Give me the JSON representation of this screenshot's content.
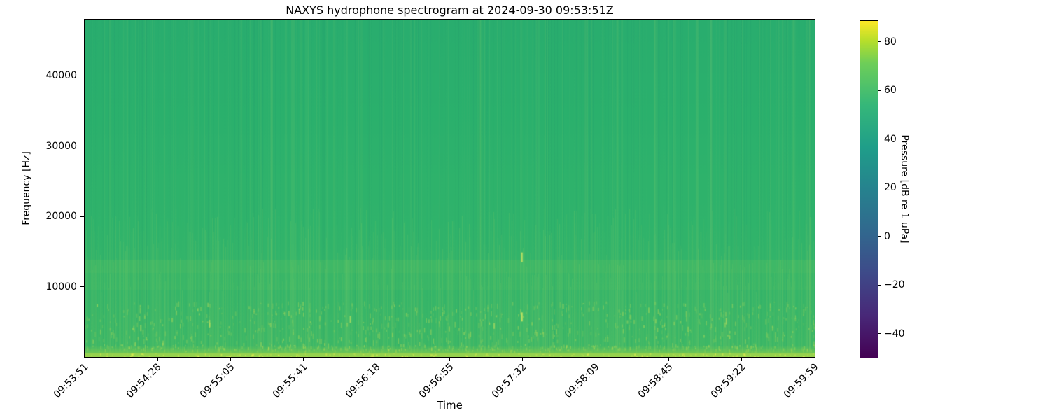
{
  "figure": {
    "title": "NAXYS hydrophone spectrogram at 2024-09-30 09:53:51Z",
    "background_color": "#ffffff"
  },
  "chart_data": {
    "type": "heatmap",
    "subtype": "spectrogram",
    "title": "NAXYS hydrophone spectrogram at 2024-09-30 09:53:51Z",
    "xlabel": "Time",
    "ylabel": "Frequency [Hz]",
    "x_tick_labels": [
      "09:53:51",
      "09:54:28",
      "09:55:05",
      "09:55:41",
      "09:56:18",
      "09:56:55",
      "09:57:32",
      "09:58:09",
      "09:58:45",
      "09:59:22",
      "09:59:59"
    ],
    "y_tick_values": [
      10000,
      20000,
      30000,
      40000
    ],
    "y_tick_labels": [
      "10000",
      "20000",
      "30000",
      "40000"
    ],
    "freq_range_hz": [
      0,
      48000
    ],
    "time_start": "09:53:51",
    "time_end": "09:59:59",
    "grid": false,
    "colormap": "viridis",
    "colorbar": {
      "label": "Pressure [dB re 1 uPa]",
      "tick_values": [
        80,
        60,
        40,
        20,
        0,
        -20,
        -40
      ],
      "tick_labels": [
        "80",
        "60",
        "40",
        "20",
        "0",
        "−20",
        "−40"
      ],
      "vmin": -49.6,
      "vmax": 88.6,
      "position": "right"
    },
    "content_summary": {
      "background_level_db": 45,
      "notes": [
        "Nearly uniform broadband background of ~40-50 dB (mid-green in viridis) over the whole 0-48 kHz band",
        "Bright yellow-green high-energy band (~60-70 dB) hugging the bottom edge below ~1 kHz",
        "Faint lighter horizontal band near 11-13 kHz running across the entire record",
        "Dense faint vertical striations (broadband transient clicks), strongest below ~8 kHz",
        "Occasional brighter narrow transients, e.g. near 09:57:32 at ~5-6 kHz and ~14 kHz"
      ]
    },
    "appearance": {
      "base_color": "#2cb26c",
      "hband_color": "rgba(150,214,86,0.12)",
      "bottom_edge_color": "#96d14d",
      "striation_bright": "rgba(215,235,120,0.08)",
      "striation_dark": "rgba(8,95,110,0.07)",
      "transient_color": "rgba(228,238,95,0.85)",
      "transient_marks": [
        {
          "xf": 0.598,
          "yf": 0.69,
          "h": 14,
          "a": 0.75
        },
        {
          "xf": 0.598,
          "yf": 0.868,
          "h": 13,
          "a": 0.8
        },
        {
          "xf": 0.363,
          "yf": 0.878,
          "h": 10,
          "a": 0.55
        },
        {
          "xf": 0.17,
          "yf": 0.89,
          "h": 11,
          "a": 0.5
        },
        {
          "xf": 0.076,
          "yf": 0.905,
          "h": 9,
          "a": 0.45
        },
        {
          "xf": 0.56,
          "yf": 0.9,
          "h": 8,
          "a": 0.45
        },
        {
          "xf": 0.878,
          "yf": 0.885,
          "h": 9,
          "a": 0.45
        }
      ]
    }
  }
}
